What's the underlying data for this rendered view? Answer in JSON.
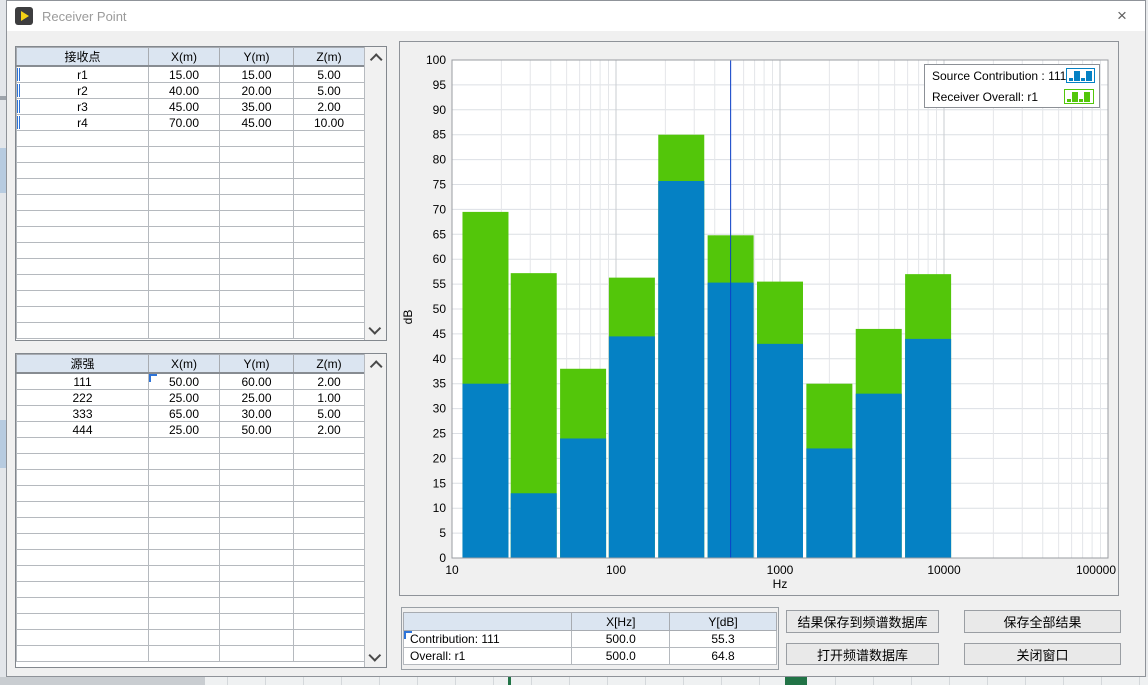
{
  "window": {
    "title": "Receiver Point",
    "close": "×"
  },
  "receiver_table": {
    "headers": [
      "接收点",
      "X(m)",
      "Y(m)",
      "Z(m)"
    ],
    "rows": [
      [
        "r1",
        "15.00",
        "15.00",
        "5.00"
      ],
      [
        "r2",
        "40.00",
        "20.00",
        "5.00"
      ],
      [
        "r3",
        "45.00",
        "35.00",
        "2.00"
      ],
      [
        "r4",
        "70.00",
        "45.00",
        "10.00"
      ]
    ]
  },
  "source_table": {
    "headers": [
      "源强",
      "X(m)",
      "Y(m)",
      "Z(m)"
    ],
    "rows": [
      [
        "111",
        "50.00",
        "60.00",
        "2.00"
      ],
      [
        "222",
        "25.00",
        "25.00",
        "1.00"
      ],
      [
        "333",
        "65.00",
        "30.00",
        "5.00"
      ],
      [
        "444",
        "25.00",
        "50.00",
        "2.00"
      ]
    ]
  },
  "chart_data": {
    "type": "bar",
    "x_scale": "log",
    "x": [
      16,
      31.5,
      63,
      125,
      250,
      500,
      1000,
      2000,
      4000,
      8000
    ],
    "series": [
      {
        "name": "Source Contribution : 111",
        "color": "#0581c4",
        "values": [
          35,
          13,
          24,
          44.5,
          75.7,
          55.3,
          43,
          22,
          33,
          44
        ]
      },
      {
        "name": "Receiver Overall: r1",
        "color": "#53c60a",
        "values": [
          69.5,
          57.2,
          38,
          56.3,
          85,
          64.8,
          55.5,
          35,
          46,
          57
        ]
      }
    ],
    "xlabel": "Hz",
    "ylabel": "dB",
    "xlim": [
      10,
      100000
    ],
    "ylim": [
      0,
      100
    ],
    "x_ticks": [
      10,
      100,
      1000,
      10000,
      100000
    ],
    "y_tick_step": 5,
    "cursor_x": 500,
    "cursor_color": "#0b3fc8",
    "grid": true,
    "legend_position": "top-right"
  },
  "cursor_table": {
    "headers": [
      "",
      "X[Hz]",
      "Y[dB]"
    ],
    "rows": [
      [
        "Contribution: 111",
        "500.0",
        "55.3"
      ],
      [
        "Overall: r1",
        "500.0",
        "64.8"
      ]
    ]
  },
  "buttons": {
    "save_to_db": "结果保存到频谱数据库",
    "save_all": "保存全部结果",
    "open_db": "打开频谱数据库",
    "close_window": "关闭窗口"
  }
}
